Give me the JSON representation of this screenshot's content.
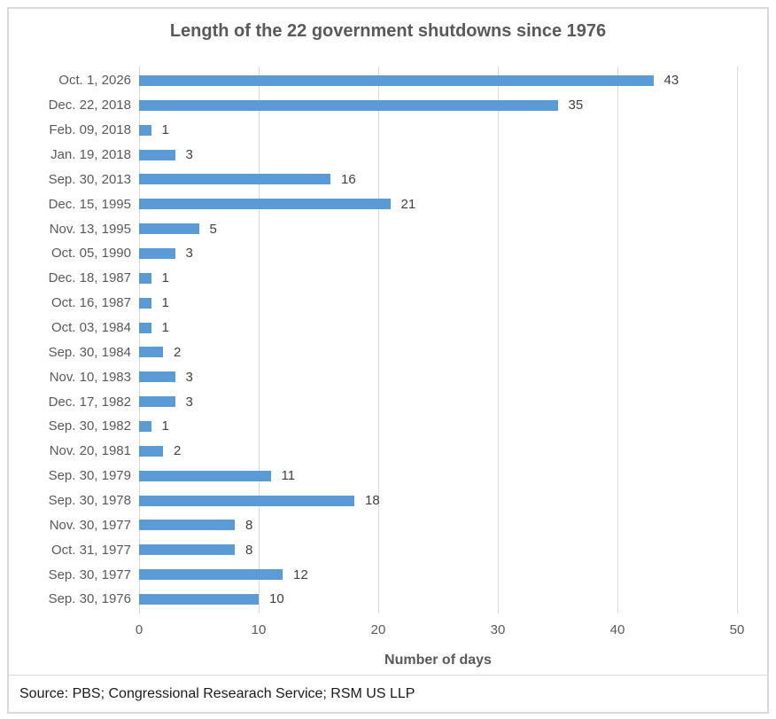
{
  "chart_data": {
    "type": "bar",
    "orientation": "horizontal",
    "title": "Length of the 22 government shutdowns since 1976",
    "xlabel": "Number of days",
    "ylabel": "",
    "xlim": [
      0,
      50
    ],
    "x_ticks": [
      "0",
      "10",
      "20",
      "30",
      "40",
      "50"
    ],
    "grid": "vertical-gridlines-on",
    "legend": "none",
    "bar_color": "#5b9bd5",
    "categories": [
      "Oct. 1, 2026",
      "Dec. 22, 2018",
      "Feb. 09, 2018",
      "Jan. 19, 2018",
      "Sep. 30, 2013",
      "Dec. 15, 1995",
      "Nov. 13, 1995",
      "Oct. 05, 1990",
      "Dec. 18, 1987",
      "Oct. 16, 1987",
      "Oct. 03, 1984",
      "Sep. 30, 1984",
      "Nov. 10, 1983",
      "Dec. 17, 1982",
      "Sep. 30, 1982",
      "Nov. 20, 1981",
      "Sep. 30, 1979",
      "Sep. 30, 1978",
      "Nov. 30, 1977",
      "Oct. 31, 1977",
      "Sep. 30, 1977",
      "Sep. 30, 1976"
    ],
    "values": [
      43,
      35,
      1,
      3,
      16,
      21,
      5,
      3,
      1,
      1,
      1,
      2,
      3,
      3,
      1,
      2,
      11,
      18,
      8,
      8,
      12,
      10
    ]
  },
  "source": {
    "text": "Source: PBS; Congressional Researach Service; RSM US LLP"
  },
  "colors": {
    "bar": "#5b9bd5",
    "gridline": "#d9d9d9",
    "frame_border": "#d9d9d9",
    "title_text": "#595959",
    "axis_text": "#595959",
    "value_text": "#404040",
    "source_text": "#1a1a1a"
  }
}
